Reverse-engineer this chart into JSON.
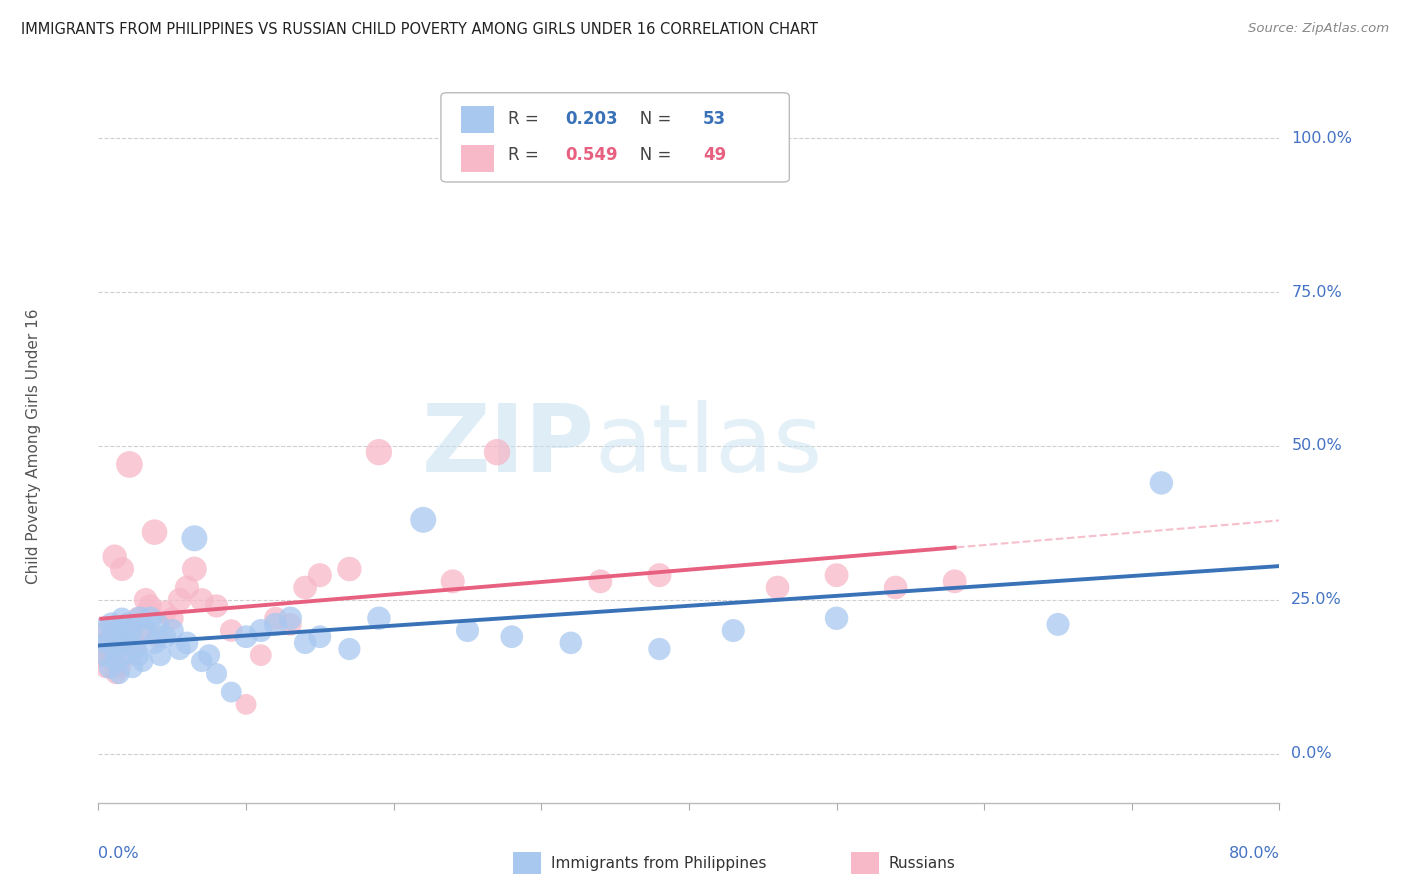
{
  "title": "IMMIGRANTS FROM PHILIPPINES VS RUSSIAN CHILD POVERTY AMONG GIRLS UNDER 16 CORRELATION CHART",
  "source": "Source: ZipAtlas.com",
  "ylabel": "Child Poverty Among Girls Under 16",
  "ytick_values": [
    0.0,
    25.0,
    50.0,
    75.0,
    100.0
  ],
  "xlim": [
    0.0,
    80.0
  ],
  "ylim": [
    -8.0,
    108.0
  ],
  "series1_name": "Immigrants from Philippines",
  "series1_color": "#a8c8f0",
  "series1_line_color": "#3a72b8",
  "series1_R": "0.203",
  "series1_N": "53",
  "series2_name": "Russians",
  "series2_color": "#f7b8c8",
  "series2_line_color": "#e86080",
  "series2_R": "0.549",
  "series2_N": "49",
  "background_color": "#ffffff",
  "grid_color": "#d0d0d0",
  "axis_label_color": "#4472c4",
  "title_color": "#222222",
  "watermark_zip": "ZIP",
  "watermark_atlas": "atlas",
  "series1_x": [
    0.3,
    0.5,
    0.6,
    0.8,
    0.9,
    1.0,
    1.1,
    1.2,
    1.3,
    1.4,
    1.5,
    1.6,
    1.7,
    1.8,
    2.0,
    2.1,
    2.2,
    2.3,
    2.5,
    2.7,
    2.8,
    3.0,
    3.2,
    3.5,
    3.8,
    4.0,
    4.2,
    4.5,
    5.0,
    5.5,
    6.0,
    6.5,
    7.0,
    7.5,
    8.0,
    9.0,
    10.0,
    11.0,
    12.0,
    13.0,
    14.0,
    15.0,
    17.0,
    19.0,
    22.0,
    25.0,
    28.0,
    32.0,
    38.0,
    43.0,
    50.0,
    65.0,
    72.0
  ],
  "series1_y": [
    20.0,
    16.0,
    18.0,
    14.0,
    21.0,
    19.0,
    17.0,
    15.0,
    20.0,
    13.0,
    18.0,
    22.0,
    16.0,
    19.0,
    21.0,
    18.0,
    20.0,
    14.0,
    17.0,
    16.0,
    22.0,
    15.0,
    20.0,
    22.0,
    18.0,
    21.0,
    16.0,
    19.0,
    20.0,
    17.0,
    18.0,
    35.0,
    15.0,
    16.0,
    13.0,
    10.0,
    19.0,
    20.0,
    21.0,
    22.0,
    18.0,
    19.0,
    17.0,
    22.0,
    38.0,
    20.0,
    19.0,
    18.0,
    17.0,
    20.0,
    22.0,
    21.0,
    44.0
  ],
  "series2_x": [
    0.2,
    0.4,
    0.5,
    0.6,
    0.8,
    1.0,
    1.1,
    1.2,
    1.3,
    1.5,
    1.6,
    1.8,
    2.0,
    2.1,
    2.2,
    2.5,
    2.7,
    3.0,
    3.2,
    3.5,
    3.8,
    4.0,
    4.5,
    5.0,
    5.5,
    6.0,
    6.5,
    7.0,
    8.0,
    9.0,
    10.0,
    11.0,
    12.0,
    13.0,
    14.0,
    15.0,
    17.0,
    19.0,
    24.0,
    27.0,
    34.0,
    38.0,
    46.0,
    50.0,
    54.0,
    58.0
  ],
  "series2_y": [
    16.0,
    18.0,
    14.0,
    20.0,
    16.0,
    15.0,
    32.0,
    13.0,
    17.0,
    14.0,
    30.0,
    19.0,
    16.0,
    47.0,
    20.0,
    18.0,
    22.0,
    20.0,
    25.0,
    24.0,
    36.0,
    19.0,
    23.0,
    22.0,
    25.0,
    27.0,
    30.0,
    25.0,
    24.0,
    20.0,
    8.0,
    16.0,
    22.0,
    21.0,
    27.0,
    29.0,
    30.0,
    49.0,
    28.0,
    49.0,
    28.0,
    29.0,
    27.0,
    29.0,
    27.0,
    28.0
  ],
  "series1_sizes": [
    320,
    280,
    260,
    270,
    300,
    280,
    260,
    240,
    270,
    230,
    270,
    240,
    250,
    270,
    290,
    270,
    280,
    240,
    260,
    250,
    290,
    235,
    270,
    285,
    260,
    280,
    250,
    270,
    275,
    255,
    265,
    350,
    240,
    250,
    232,
    225,
    270,
    275,
    280,
    285,
    260,
    270,
    255,
    285,
    350,
    275,
    268,
    265,
    258,
    275,
    285,
    275,
    285
  ],
  "series2_sizes": [
    280,
    260,
    240,
    270,
    255,
    255,
    310,
    235,
    250,
    225,
    300,
    260,
    245,
    370,
    270,
    255,
    280,
    265,
    290,
    280,
    340,
    255,
    280,
    270,
    290,
    300,
    320,
    285,
    280,
    265,
    225,
    245,
    270,
    265,
    290,
    300,
    310,
    360,
    300,
    360,
    295,
    300,
    290,
    295,
    290,
    295
  ]
}
